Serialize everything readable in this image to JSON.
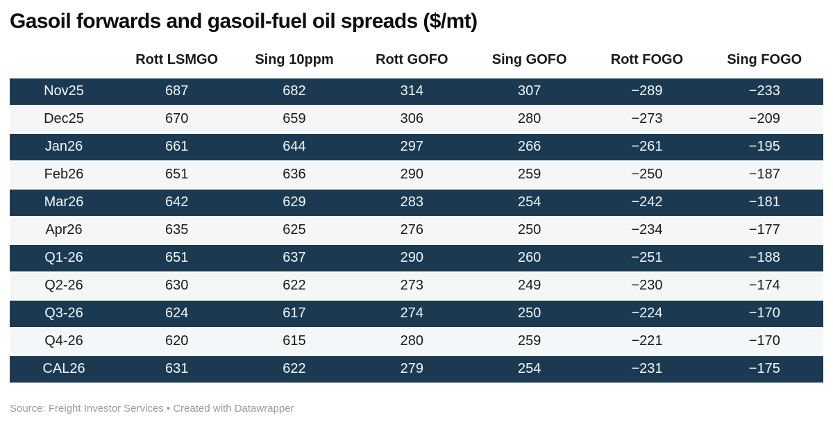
{
  "title": "Gasoil forwards and gasoil-fuel oil spreads ($/mt)",
  "footer": "Source: Freight Investor Services • Created with Datawrapper",
  "colors": {
    "dark_row_bg": "#1b3a52",
    "light_row_bg": "#f5f6f7",
    "dark_row_text": "#f2f7fa",
    "light_row_text": "#1a1a1a",
    "title_text": "#0d0d0d",
    "footer_text": "#9b9b9b"
  },
  "chart_data": {
    "type": "table",
    "title": "Gasoil forwards and gasoil-fuel oil spreads ($/mt)",
    "columns": [
      "",
      "Rott LSMGO",
      "Sing 10ppm",
      "Rott GOFO",
      "Sing GOFO",
      "Rott FOGO",
      "Sing FOGO"
    ],
    "rows": [
      {
        "label": "Nov25",
        "values": [
          687,
          682,
          314,
          307,
          -289,
          -233
        ]
      },
      {
        "label": "Dec25",
        "values": [
          670,
          659,
          306,
          280,
          -273,
          -209
        ]
      },
      {
        "label": "Jan26",
        "values": [
          661,
          644,
          297,
          266,
          -261,
          -195
        ]
      },
      {
        "label": "Feb26",
        "values": [
          651,
          636,
          290,
          259,
          -250,
          -187
        ]
      },
      {
        "label": "Mar26",
        "values": [
          642,
          629,
          283,
          254,
          -242,
          -181
        ]
      },
      {
        "label": "Apr26",
        "values": [
          635,
          625,
          276,
          250,
          -234,
          -177
        ]
      },
      {
        "label": "Q1-26",
        "values": [
          651,
          637,
          290,
          260,
          -251,
          -188
        ]
      },
      {
        "label": "Q2-26",
        "values": [
          630,
          622,
          273,
          249,
          -230,
          -174
        ]
      },
      {
        "label": "Q3-26",
        "values": [
          624,
          617,
          274,
          250,
          -224,
          -170
        ]
      },
      {
        "label": "Q4-26",
        "values": [
          620,
          615,
          280,
          259,
          -221,
          -170
        ]
      },
      {
        "label": "CAL26",
        "values": [
          631,
          622,
          279,
          254,
          -231,
          -175
        ]
      }
    ],
    "layout": {
      "striping": "alternating rows starting dark",
      "source_note": "Source: Freight Investor Services • Created with Datawrapper"
    }
  }
}
